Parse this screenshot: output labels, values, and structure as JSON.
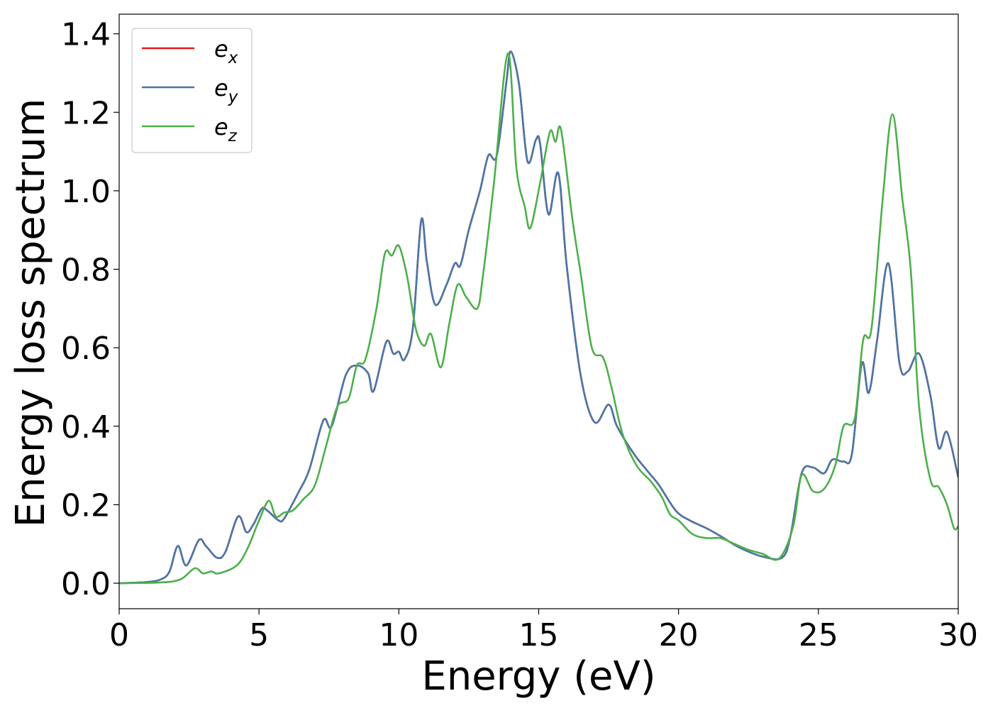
{
  "chart_data": {
    "type": "line",
    "xlabel": "Energy (eV)",
    "ylabel": "Energy loss spectrum",
    "xlim": [
      0,
      30
    ],
    "ylim": [
      -0.065,
      1.45
    ],
    "xticks": [
      0,
      5,
      10,
      15,
      20,
      25,
      30
    ],
    "xtick_labels": [
      "0",
      "5",
      "10",
      "15",
      "20",
      "25",
      "30"
    ],
    "yticks": [
      0.0,
      0.2,
      0.4,
      0.6,
      0.8,
      1.0,
      1.2,
      1.4
    ],
    "ytick_labels": [
      "0.0",
      "0.2",
      "0.4",
      "0.6",
      "0.8",
      "1.0",
      "1.2",
      "1.4"
    ],
    "grid": false,
    "legend_position": "top-left",
    "series": [
      {
        "name": "e_x",
        "label_base": "e",
        "label_sub": "x",
        "color": "#e41a1c",
        "points": [
          [
            0,
            0.0
          ],
          [
            1.0,
            0.003
          ],
          [
            1.5,
            0.01
          ],
          [
            1.8,
            0.03
          ],
          [
            2.1,
            0.095
          ],
          [
            2.4,
            0.045
          ],
          [
            2.85,
            0.11
          ],
          [
            3.1,
            0.095
          ],
          [
            3.5,
            0.065
          ],
          [
            3.8,
            0.08
          ],
          [
            4.25,
            0.17
          ],
          [
            4.55,
            0.13
          ],
          [
            4.8,
            0.15
          ],
          [
            5.1,
            0.19
          ],
          [
            5.3,
            0.185
          ],
          [
            5.7,
            0.16
          ],
          [
            5.9,
            0.165
          ],
          [
            6.4,
            0.23
          ],
          [
            6.8,
            0.29
          ],
          [
            7.3,
            0.415
          ],
          [
            7.6,
            0.4
          ],
          [
            8.1,
            0.53
          ],
          [
            8.5,
            0.555
          ],
          [
            8.9,
            0.535
          ],
          [
            9.1,
            0.49
          ],
          [
            9.55,
            0.615
          ],
          [
            9.8,
            0.585
          ],
          [
            10.0,
            0.59
          ],
          [
            10.2,
            0.57
          ],
          [
            10.5,
            0.65
          ],
          [
            10.8,
            0.925
          ],
          [
            11.0,
            0.82
          ],
          [
            11.3,
            0.71
          ],
          [
            11.7,
            0.76
          ],
          [
            12.0,
            0.815
          ],
          [
            12.2,
            0.81
          ],
          [
            12.5,
            0.9
          ],
          [
            12.9,
            1.0
          ],
          [
            13.2,
            1.09
          ],
          [
            13.5,
            1.09
          ],
          [
            13.85,
            1.28
          ],
          [
            14.0,
            1.355
          ],
          [
            14.3,
            1.27
          ],
          [
            14.6,
            1.075
          ],
          [
            14.9,
            1.13
          ],
          [
            15.05,
            1.12
          ],
          [
            15.35,
            0.94
          ],
          [
            15.7,
            1.045
          ],
          [
            16.0,
            0.81
          ],
          [
            16.5,
            0.53
          ],
          [
            17.0,
            0.41
          ],
          [
            17.5,
            0.455
          ],
          [
            17.8,
            0.4
          ],
          [
            18.4,
            0.33
          ],
          [
            18.9,
            0.285
          ],
          [
            19.3,
            0.25
          ],
          [
            19.9,
            0.185
          ],
          [
            20.4,
            0.16
          ],
          [
            21.0,
            0.14
          ],
          [
            21.5,
            0.12
          ],
          [
            22.2,
            0.09
          ],
          [
            23.0,
            0.068
          ],
          [
            23.7,
            0.065
          ],
          [
            24.0,
            0.12
          ],
          [
            24.4,
            0.28
          ],
          [
            24.8,
            0.295
          ],
          [
            25.2,
            0.28
          ],
          [
            25.5,
            0.315
          ],
          [
            25.9,
            0.31
          ],
          [
            26.2,
            0.33
          ],
          [
            26.55,
            0.56
          ],
          [
            26.8,
            0.485
          ],
          [
            27.1,
            0.62
          ],
          [
            27.5,
            0.815
          ],
          [
            27.9,
            0.56
          ],
          [
            28.2,
            0.54
          ],
          [
            28.6,
            0.585
          ],
          [
            29.0,
            0.48
          ],
          [
            29.3,
            0.345
          ],
          [
            29.6,
            0.385
          ],
          [
            30.0,
            0.27
          ]
        ]
      },
      {
        "name": "e_y",
        "label_base": "e",
        "label_sub": "y",
        "color": "#4877a8",
        "points": [
          [
            0,
            0.0
          ],
          [
            1.0,
            0.003
          ],
          [
            1.5,
            0.01
          ],
          [
            1.8,
            0.03
          ],
          [
            2.1,
            0.095
          ],
          [
            2.4,
            0.045
          ],
          [
            2.85,
            0.11
          ],
          [
            3.1,
            0.095
          ],
          [
            3.5,
            0.065
          ],
          [
            3.8,
            0.08
          ],
          [
            4.25,
            0.17
          ],
          [
            4.55,
            0.13
          ],
          [
            4.8,
            0.15
          ],
          [
            5.1,
            0.19
          ],
          [
            5.3,
            0.185
          ],
          [
            5.7,
            0.16
          ],
          [
            5.9,
            0.165
          ],
          [
            6.4,
            0.23
          ],
          [
            6.8,
            0.29
          ],
          [
            7.3,
            0.415
          ],
          [
            7.6,
            0.4
          ],
          [
            8.1,
            0.53
          ],
          [
            8.5,
            0.555
          ],
          [
            8.9,
            0.535
          ],
          [
            9.1,
            0.49
          ],
          [
            9.55,
            0.615
          ],
          [
            9.8,
            0.585
          ],
          [
            10.0,
            0.59
          ],
          [
            10.2,
            0.57
          ],
          [
            10.5,
            0.65
          ],
          [
            10.8,
            0.925
          ],
          [
            11.0,
            0.82
          ],
          [
            11.3,
            0.71
          ],
          [
            11.7,
            0.76
          ],
          [
            12.0,
            0.815
          ],
          [
            12.2,
            0.81
          ],
          [
            12.5,
            0.9
          ],
          [
            12.9,
            1.0
          ],
          [
            13.2,
            1.09
          ],
          [
            13.5,
            1.09
          ],
          [
            13.85,
            1.28
          ],
          [
            14.0,
            1.355
          ],
          [
            14.3,
            1.27
          ],
          [
            14.6,
            1.075
          ],
          [
            14.9,
            1.13
          ],
          [
            15.05,
            1.12
          ],
          [
            15.35,
            0.94
          ],
          [
            15.7,
            1.045
          ],
          [
            16.0,
            0.81
          ],
          [
            16.5,
            0.53
          ],
          [
            17.0,
            0.41
          ],
          [
            17.5,
            0.455
          ],
          [
            17.8,
            0.4
          ],
          [
            18.4,
            0.33
          ],
          [
            18.9,
            0.285
          ],
          [
            19.3,
            0.25
          ],
          [
            19.9,
            0.185
          ],
          [
            20.4,
            0.16
          ],
          [
            21.0,
            0.14
          ],
          [
            21.5,
            0.12
          ],
          [
            22.2,
            0.09
          ],
          [
            23.0,
            0.068
          ],
          [
            23.7,
            0.065
          ],
          [
            24.0,
            0.12
          ],
          [
            24.4,
            0.28
          ],
          [
            24.8,
            0.295
          ],
          [
            25.2,
            0.28
          ],
          [
            25.5,
            0.315
          ],
          [
            25.9,
            0.31
          ],
          [
            26.2,
            0.33
          ],
          [
            26.55,
            0.56
          ],
          [
            26.8,
            0.485
          ],
          [
            27.1,
            0.62
          ],
          [
            27.5,
            0.815
          ],
          [
            27.9,
            0.56
          ],
          [
            28.2,
            0.54
          ],
          [
            28.6,
            0.585
          ],
          [
            29.0,
            0.48
          ],
          [
            29.3,
            0.345
          ],
          [
            29.6,
            0.385
          ],
          [
            30.0,
            0.27
          ]
        ]
      },
      {
        "name": "e_z",
        "label_base": "e",
        "label_sub": "z",
        "color": "#4daf4a",
        "points": [
          [
            0,
            0.0
          ],
          [
            1.5,
            0.002
          ],
          [
            2.2,
            0.01
          ],
          [
            2.7,
            0.038
          ],
          [
            3.0,
            0.025
          ],
          [
            3.3,
            0.03
          ],
          [
            3.55,
            0.025
          ],
          [
            4.2,
            0.045
          ],
          [
            4.6,
            0.09
          ],
          [
            5.0,
            0.16
          ],
          [
            5.35,
            0.21
          ],
          [
            5.6,
            0.17
          ],
          [
            5.9,
            0.18
          ],
          [
            6.2,
            0.185
          ],
          [
            6.6,
            0.215
          ],
          [
            7.0,
            0.25
          ],
          [
            7.4,
            0.35
          ],
          [
            7.8,
            0.45
          ],
          [
            8.2,
            0.47
          ],
          [
            8.5,
            0.555
          ],
          [
            8.8,
            0.57
          ],
          [
            9.2,
            0.7
          ],
          [
            9.5,
            0.84
          ],
          [
            9.75,
            0.835
          ],
          [
            10.0,
            0.86
          ],
          [
            10.3,
            0.78
          ],
          [
            10.6,
            0.65
          ],
          [
            10.9,
            0.605
          ],
          [
            11.15,
            0.635
          ],
          [
            11.5,
            0.55
          ],
          [
            11.8,
            0.66
          ],
          [
            12.1,
            0.76
          ],
          [
            12.4,
            0.73
          ],
          [
            12.8,
            0.7
          ],
          [
            13.0,
            0.78
          ],
          [
            13.4,
            1.02
          ],
          [
            13.9,
            1.35
          ],
          [
            14.2,
            1.06
          ],
          [
            14.5,
            0.96
          ],
          [
            14.7,
            0.905
          ],
          [
            15.05,
            1.02
          ],
          [
            15.4,
            1.15
          ],
          [
            15.6,
            1.125
          ],
          [
            15.8,
            1.155
          ],
          [
            16.2,
            0.93
          ],
          [
            16.5,
            0.79
          ],
          [
            16.9,
            0.6
          ],
          [
            17.3,
            0.575
          ],
          [
            17.6,
            0.5
          ],
          [
            18.0,
            0.38
          ],
          [
            18.5,
            0.3
          ],
          [
            19.0,
            0.26
          ],
          [
            19.4,
            0.22
          ],
          [
            19.7,
            0.175
          ],
          [
            20.0,
            0.16
          ],
          [
            20.5,
            0.125
          ],
          [
            21.0,
            0.115
          ],
          [
            21.5,
            0.115
          ],
          [
            22.0,
            0.1
          ],
          [
            22.5,
            0.085
          ],
          [
            23.0,
            0.075
          ],
          [
            23.6,
            0.063
          ],
          [
            24.1,
            0.145
          ],
          [
            24.4,
            0.275
          ],
          [
            24.8,
            0.235
          ],
          [
            25.2,
            0.24
          ],
          [
            25.6,
            0.3
          ],
          [
            25.9,
            0.4
          ],
          [
            26.3,
            0.42
          ],
          [
            26.6,
            0.62
          ],
          [
            26.9,
            0.65
          ],
          [
            27.3,
            0.98
          ],
          [
            27.65,
            1.195
          ],
          [
            28.0,
            0.98
          ],
          [
            28.3,
            0.8
          ],
          [
            28.6,
            0.45
          ],
          [
            29.0,
            0.265
          ],
          [
            29.3,
            0.245
          ],
          [
            29.6,
            0.2
          ],
          [
            29.85,
            0.14
          ],
          [
            30.0,
            0.145
          ]
        ]
      }
    ]
  }
}
